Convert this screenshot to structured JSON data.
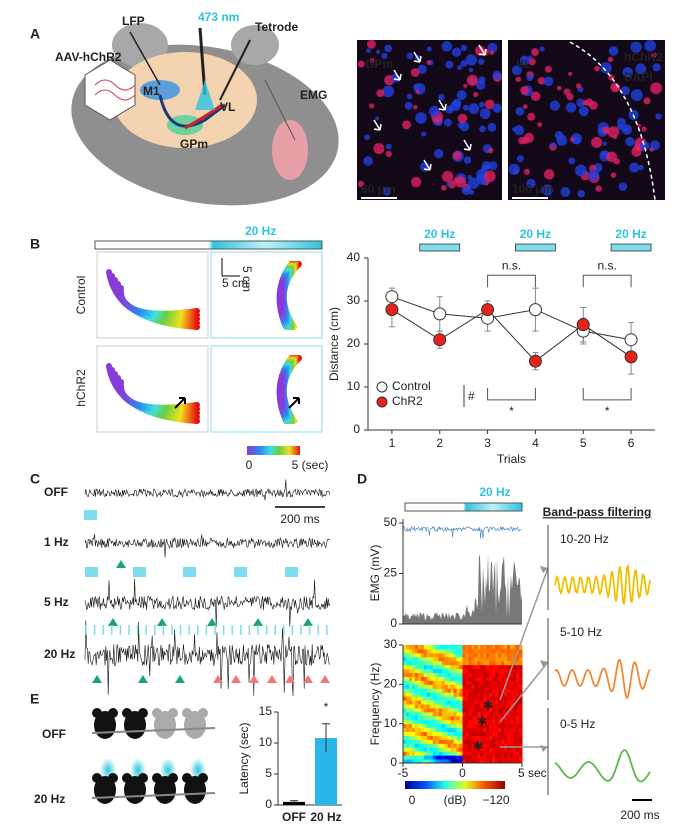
{
  "panels": {
    "A": {
      "label": "A",
      "diagram": {
        "lfp": "LFP",
        "laser": "473 nm",
        "tetrode": "Tetrode",
        "virus": "AAV-hChR2",
        "m1": "M1",
        "vl": "VL",
        "emg": "EMG",
        "gpm": "GPm"
      },
      "images": [
        {
          "region": "GPm",
          "scale": "60 μm"
        },
        {
          "region": "VL",
          "stain1": "hChR2",
          "stain2": "DAPI",
          "scale": "100 μm"
        }
      ]
    },
    "B": {
      "label": "B",
      "stim": "20 Hz",
      "rows": [
        "Control",
        "hChR2"
      ],
      "scale_x": "5 cm",
      "scale_y": "5 cm",
      "colorbar": [
        "0",
        "5 (sec)"
      ]
    },
    "C": {
      "label": "C",
      "rows": [
        "OFF",
        "1 Hz",
        "5 Hz",
        "20 Hz"
      ],
      "scale": "200 ms"
    },
    "D": {
      "label": "D",
      "stim": "20 Hz",
      "filter_title": "Band-pass filtering",
      "emg": {
        "ylabel": "EMG (mV)",
        "ylim": [
          0,
          50
        ],
        "yticks": [
          0,
          25,
          50
        ]
      },
      "spectrogram": {
        "ylabel": "Frequency (Hz)",
        "ylim": [
          0,
          30
        ],
        "yticks": [
          0,
          10,
          20,
          30
        ],
        "xlim": [
          -5,
          5
        ],
        "xticks": [
          -5,
          0,
          {
            "value": 5,
            "label": "5 sec"
          }
        ]
      },
      "colorbar": [
        "0",
        "(dB)",
        "−120"
      ],
      "bands": [
        "10-20 Hz",
        "5-10 Hz",
        "0-5 Hz"
      ],
      "scale": "200 ms"
    },
    "E": {
      "label": "E",
      "rows": [
        "OFF",
        "20 Hz"
      ]
    }
  },
  "chart_data": [
    {
      "type": "line",
      "xlabel": "Trials",
      "ylabel": "Distance (cm)",
      "x": [
        1,
        2,
        3,
        4,
        5,
        6
      ],
      "xlim": [
        0.5,
        6.5
      ],
      "xticks": [
        1,
        2,
        3,
        4,
        5,
        6
      ],
      "ylim": [
        0,
        40
      ],
      "yticks": [
        0,
        10,
        20,
        30,
        40
      ],
      "stim_label": "20 Hz",
      "stim_trials": [
        2,
        4,
        6
      ],
      "series": [
        {
          "name": "Control",
          "color": "#ffffff",
          "values": [
            31,
            27,
            26,
            28,
            23,
            21
          ],
          "errors": [
            2,
            4,
            3,
            5,
            3,
            4
          ]
        },
        {
          "name": "ChR2",
          "color": "#e8231f",
          "values": [
            28,
            21,
            28,
            16,
            24.5,
            17
          ],
          "errors": [
            4,
            2,
            2,
            2,
            4,
            4
          ]
        }
      ],
      "annotations": [
        {
          "text": "n.s.",
          "x": [
            3,
            4
          ]
        },
        {
          "text": "n.s.",
          "x": [
            5,
            6
          ]
        },
        {
          "text": "*",
          "x": [
            3,
            4
          ]
        },
        {
          "text": "*",
          "x": [
            5,
            6
          ]
        }
      ],
      "legend_note": "#",
      "legend": "lower left"
    },
    {
      "type": "bar",
      "ylabel": "Latency (sec)",
      "categories": [
        "OFF",
        "20 Hz"
      ],
      "values": [
        0.5,
        10.8
      ],
      "errors": [
        0.2,
        2.3
      ],
      "colors": [
        "#000000",
        "#29b6e8"
      ],
      "ylim": [
        0,
        15
      ],
      "yticks": [
        0,
        5,
        10,
        15
      ],
      "annotation": "*"
    }
  ]
}
